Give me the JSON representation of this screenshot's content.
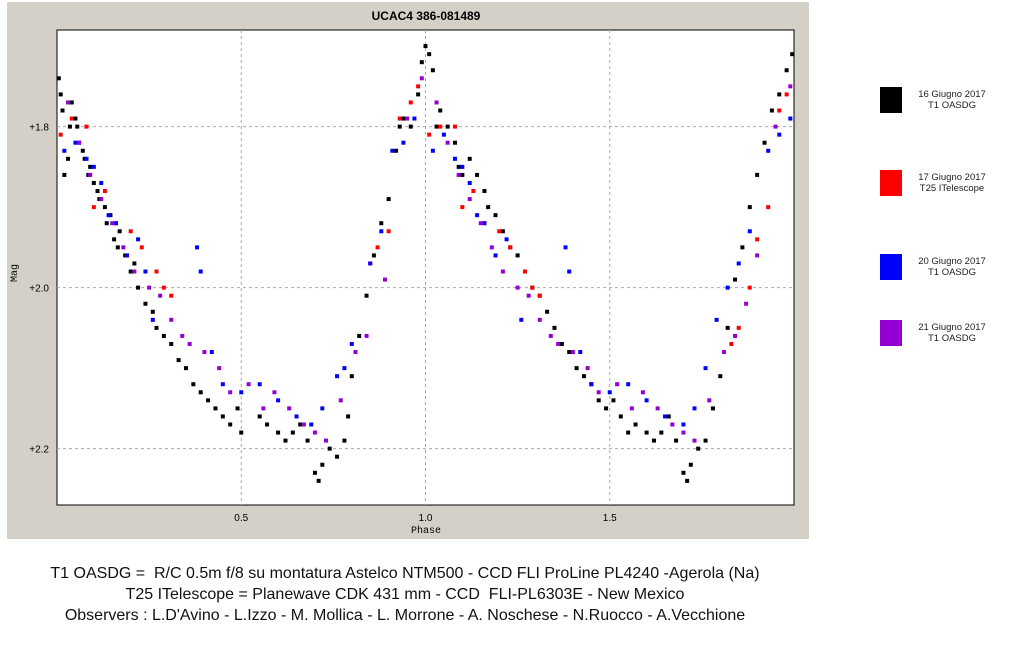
{
  "chart_data": {
    "type": "scatter",
    "title": "UCAC4 386-081489",
    "xlabel": "Phase",
    "ylabel": "Mag",
    "xlim": [
      0,
      2.0
    ],
    "ylim": [
      1.68,
      2.27
    ],
    "y_inverted": true,
    "x_ticks": [
      "0.5",
      "1.0",
      "1.5"
    ],
    "x_tick_values": [
      0.5,
      1.0,
      1.5
    ],
    "y_ticks": [
      "+1.8",
      "+2.0",
      "+2.2"
    ],
    "y_tick_values": [
      1.8,
      2.0,
      2.2
    ],
    "grid": true,
    "legend_position": "right",
    "series": [
      {
        "name": "16 Giugno 2017 T1 OASDG",
        "label_lines": [
          "16 Giugno 2017",
          "T1 OASDG"
        ],
        "color": "#000000",
        "phase_start": 0.0,
        "phase_end": 0.06,
        "phase_start2": 0.58,
        "phase_end2": 0.76,
        "points": [
          [
            0.005,
            1.74
          ],
          [
            0.01,
            1.76
          ],
          [
            0.015,
            1.78
          ],
          [
            0.02,
            1.86
          ],
          [
            0.03,
            1.84
          ],
          [
            0.035,
            1.8
          ],
          [
            0.04,
            1.77
          ],
          [
            0.05,
            1.79
          ],
          [
            0.055,
            1.8
          ],
          [
            0.06,
            1.82
          ],
          [
            0.07,
            1.83
          ],
          [
            0.075,
            1.84
          ],
          [
            0.085,
            1.86
          ],
          [
            0.09,
            1.85
          ],
          [
            0.1,
            1.87
          ],
          [
            0.11,
            1.88
          ],
          [
            0.115,
            1.89
          ],
          [
            0.13,
            1.9
          ],
          [
            0.135,
            1.92
          ],
          [
            0.145,
            1.91
          ],
          [
            0.155,
            1.94
          ],
          [
            0.165,
            1.95
          ],
          [
            0.17,
            1.93
          ],
          [
            0.185,
            1.96
          ],
          [
            0.2,
            1.98
          ],
          [
            0.21,
            1.97
          ],
          [
            0.22,
            2.0
          ],
          [
            0.24,
            2.02
          ],
          [
            0.26,
            2.03
          ],
          [
            0.27,
            2.05
          ],
          [
            0.29,
            2.06
          ],
          [
            0.31,
            2.07
          ],
          [
            0.33,
            2.09
          ],
          [
            0.35,
            2.1
          ],
          [
            0.37,
            2.12
          ],
          [
            0.39,
            2.13
          ],
          [
            0.41,
            2.14
          ],
          [
            0.43,
            2.15
          ],
          [
            0.45,
            2.16
          ],
          [
            0.47,
            2.17
          ],
          [
            0.49,
            2.15
          ],
          [
            0.5,
            2.18
          ],
          [
            0.55,
            2.16
          ],
          [
            0.57,
            2.17
          ],
          [
            0.6,
            2.18
          ],
          [
            0.62,
            2.19
          ],
          [
            0.64,
            2.18
          ],
          [
            0.66,
            2.17
          ],
          [
            0.68,
            2.19
          ],
          [
            0.7,
            2.23
          ],
          [
            0.71,
            2.24
          ],
          [
            0.72,
            2.22
          ],
          [
            0.74,
            2.2
          ],
          [
            0.76,
            2.21
          ],
          [
            0.78,
            2.19
          ],
          [
            0.79,
            2.16
          ],
          [
            0.8,
            2.11
          ],
          [
            0.82,
            2.06
          ],
          [
            0.84,
            2.01
          ],
          [
            0.86,
            1.96
          ],
          [
            0.88,
            1.92
          ],
          [
            0.9,
            1.89
          ],
          [
            0.92,
            1.83
          ],
          [
            0.93,
            1.8
          ],
          [
            0.94,
            1.79
          ],
          [
            0.96,
            1.8
          ],
          [
            0.98,
            1.76
          ],
          [
            0.99,
            1.72
          ],
          [
            1.0,
            1.7
          ],
          [
            1.01,
            1.71
          ],
          [
            1.02,
            1.73
          ],
          [
            1.03,
            1.8
          ],
          [
            1.04,
            1.78
          ],
          [
            1.06,
            1.8
          ],
          [
            1.08,
            1.82
          ],
          [
            1.09,
            1.85
          ],
          [
            1.1,
            1.86
          ],
          [
            1.12,
            1.84
          ],
          [
            1.14,
            1.86
          ],
          [
            1.16,
            1.88
          ],
          [
            1.17,
            1.9
          ],
          [
            1.19,
            1.91
          ],
          [
            1.21,
            1.93
          ],
          [
            1.23,
            1.95
          ],
          [
            1.25,
            1.96
          ],
          [
            1.27,
            1.98
          ],
          [
            1.29,
            2.0
          ],
          [
            1.31,
            2.01
          ],
          [
            1.33,
            2.03
          ],
          [
            1.35,
            2.05
          ],
          [
            1.37,
            2.07
          ],
          [
            1.39,
            2.08
          ],
          [
            1.41,
            2.1
          ],
          [
            1.43,
            2.11
          ],
          [
            1.45,
            2.12
          ],
          [
            1.47,
            2.14
          ],
          [
            1.49,
            2.15
          ],
          [
            1.51,
            2.14
          ],
          [
            1.53,
            2.16
          ],
          [
            1.55,
            2.18
          ],
          [
            1.57,
            2.17
          ],
          [
            1.6,
            2.18
          ],
          [
            1.62,
            2.19
          ],
          [
            1.64,
            2.18
          ],
          [
            1.66,
            2.16
          ],
          [
            1.68,
            2.19
          ],
          [
            1.7,
            2.23
          ],
          [
            1.71,
            2.24
          ],
          [
            1.72,
            2.22
          ],
          [
            1.74,
            2.2
          ],
          [
            1.76,
            2.19
          ],
          [
            1.78,
            2.15
          ],
          [
            1.8,
            2.11
          ],
          [
            1.82,
            2.05
          ],
          [
            1.84,
            1.99
          ],
          [
            1.86,
            1.95
          ],
          [
            1.88,
            1.9
          ],
          [
            1.9,
            1.86
          ],
          [
            1.92,
            1.82
          ],
          [
            1.94,
            1.78
          ],
          [
            1.96,
            1.76
          ],
          [
            1.98,
            1.73
          ],
          [
            1.995,
            1.71
          ]
        ]
      },
      {
        "name": "17 Giugno 2017 T25 ITelescope",
        "label_lines": [
          "17 Giugno 2017",
          "T25 ITelescope"
        ],
        "color": "#ff0000",
        "points": [
          [
            0.01,
            1.81
          ],
          [
            0.04,
            1.79
          ],
          [
            0.08,
            1.8
          ],
          [
            0.1,
            1.9
          ],
          [
            0.13,
            1.88
          ],
          [
            0.16,
            1.92
          ],
          [
            0.2,
            1.93
          ],
          [
            0.23,
            1.95
          ],
          [
            0.27,
            1.98
          ],
          [
            0.29,
            2.0
          ],
          [
            0.31,
            2.01
          ],
          [
            0.85,
            1.97
          ],
          [
            0.87,
            1.95
          ],
          [
            0.9,
            1.93
          ],
          [
            0.93,
            1.79
          ],
          [
            0.96,
            1.77
          ],
          [
            0.98,
            1.75
          ],
          [
            1.01,
            1.81
          ],
          [
            1.04,
            1.8
          ],
          [
            1.08,
            1.8
          ],
          [
            1.1,
            1.9
          ],
          [
            1.13,
            1.88
          ],
          [
            1.16,
            1.92
          ],
          [
            1.2,
            1.93
          ],
          [
            1.23,
            1.95
          ],
          [
            1.27,
            1.98
          ],
          [
            1.29,
            2.0
          ],
          [
            1.31,
            2.01
          ],
          [
            1.83,
            2.07
          ],
          [
            1.85,
            2.05
          ],
          [
            1.88,
            2.0
          ],
          [
            1.9,
            1.94
          ],
          [
            1.93,
            1.9
          ],
          [
            1.96,
            1.78
          ],
          [
            1.98,
            1.76
          ]
        ]
      },
      {
        "name": "20 Giugno 2017 T1 OASDG",
        "label_lines": [
          "20 Giugno 2017",
          "T1 OASDG"
        ],
        "color": "#0000ff",
        "points": [
          [
            0.02,
            1.83
          ],
          [
            0.05,
            1.82
          ],
          [
            0.08,
            1.84
          ],
          [
            0.1,
            1.85
          ],
          [
            0.12,
            1.87
          ],
          [
            0.14,
            1.91
          ],
          [
            0.16,
            1.92
          ],
          [
            0.19,
            1.96
          ],
          [
            0.22,
            1.94
          ],
          [
            0.24,
            1.98
          ],
          [
            0.26,
            2.04
          ],
          [
            0.38,
            1.95
          ],
          [
            0.39,
            1.98
          ],
          [
            0.42,
            2.08
          ],
          [
            0.45,
            2.12
          ],
          [
            0.5,
            2.13
          ],
          [
            0.55,
            2.12
          ],
          [
            0.6,
            2.14
          ],
          [
            0.65,
            2.16
          ],
          [
            0.69,
            2.17
          ],
          [
            0.72,
            2.15
          ],
          [
            0.76,
            2.11
          ],
          [
            0.78,
            2.1
          ],
          [
            0.8,
            2.07
          ],
          [
            0.85,
            1.97
          ],
          [
            0.88,
            1.93
          ],
          [
            0.91,
            1.83
          ],
          [
            0.94,
            1.82
          ],
          [
            0.97,
            1.79
          ],
          [
            1.02,
            1.83
          ],
          [
            1.05,
            1.81
          ],
          [
            1.08,
            1.84
          ],
          [
            1.1,
            1.85
          ],
          [
            1.12,
            1.87
          ],
          [
            1.14,
            1.91
          ],
          [
            1.16,
            1.92
          ],
          [
            1.19,
            1.96
          ],
          [
            1.22,
            1.94
          ],
          [
            1.26,
            2.04
          ],
          [
            1.38,
            1.95
          ],
          [
            1.39,
            1.98
          ],
          [
            1.42,
            2.08
          ],
          [
            1.45,
            2.12
          ],
          [
            1.5,
            2.13
          ],
          [
            1.55,
            2.12
          ],
          [
            1.6,
            2.14
          ],
          [
            1.65,
            2.16
          ],
          [
            1.7,
            2.17
          ],
          [
            1.73,
            2.15
          ],
          [
            1.76,
            2.1
          ],
          [
            1.79,
            2.04
          ],
          [
            1.82,
            2.0
          ],
          [
            1.85,
            1.97
          ],
          [
            1.88,
            1.93
          ],
          [
            1.93,
            1.83
          ],
          [
            1.96,
            1.81
          ],
          [
            1.99,
            1.79
          ]
        ]
      },
      {
        "name": "21 Giugno 2017 T1 OASDG",
        "label_lines": [
          "21 Giugno 2017",
          "T1 OASDG"
        ],
        "color": "#9400d3",
        "points": [
          [
            0.03,
            1.77
          ],
          [
            0.06,
            1.82
          ],
          [
            0.09,
            1.86
          ],
          [
            0.12,
            1.89
          ],
          [
            0.15,
            1.92
          ],
          [
            0.18,
            1.95
          ],
          [
            0.21,
            1.98
          ],
          [
            0.25,
            2.0
          ],
          [
            0.28,
            2.01
          ],
          [
            0.31,
            2.04
          ],
          [
            0.34,
            2.06
          ],
          [
            0.36,
            2.07
          ],
          [
            0.4,
            2.08
          ],
          [
            0.44,
            2.1
          ],
          [
            0.47,
            2.13
          ],
          [
            0.52,
            2.12
          ],
          [
            0.56,
            2.15
          ],
          [
            0.59,
            2.13
          ],
          [
            0.63,
            2.15
          ],
          [
            0.67,
            2.17
          ],
          [
            0.7,
            2.18
          ],
          [
            0.73,
            2.19
          ],
          [
            0.77,
            2.14
          ],
          [
            0.81,
            2.08
          ],
          [
            0.84,
            2.06
          ],
          [
            0.89,
            1.99
          ],
          [
            0.95,
            1.79
          ],
          [
            0.99,
            1.74
          ],
          [
            1.03,
            1.77
          ],
          [
            1.06,
            1.82
          ],
          [
            1.09,
            1.86
          ],
          [
            1.12,
            1.89
          ],
          [
            1.15,
            1.92
          ],
          [
            1.18,
            1.95
          ],
          [
            1.21,
            1.98
          ],
          [
            1.25,
            2.0
          ],
          [
            1.28,
            2.01
          ],
          [
            1.31,
            2.04
          ],
          [
            1.34,
            2.06
          ],
          [
            1.36,
            2.07
          ],
          [
            1.4,
            2.08
          ],
          [
            1.44,
            2.1
          ],
          [
            1.47,
            2.13
          ],
          [
            1.52,
            2.12
          ],
          [
            1.56,
            2.15
          ],
          [
            1.59,
            2.13
          ],
          [
            1.63,
            2.15
          ],
          [
            1.67,
            2.17
          ],
          [
            1.7,
            2.18
          ],
          [
            1.73,
            2.19
          ],
          [
            1.77,
            2.14
          ],
          [
            1.81,
            2.08
          ],
          [
            1.84,
            2.06
          ],
          [
            1.87,
            2.02
          ],
          [
            1.9,
            1.96
          ],
          [
            1.95,
            1.8
          ],
          [
            1.99,
            1.75
          ]
        ]
      }
    ]
  },
  "footer": {
    "line1": "T1 OASDG =  R/C 0.5m f/8 su montatura Astelco NTM500 - CCD FLI ProLine PL4240 -Agerola (Na)",
    "line2": "T25 ITelescope = Planewave CDK 431 mm - CCD  FLI-PL6303E - New Mexico",
    "line3": "Observers : L.D'Avino - L.Izzo - M. Mollica - L. Morrone - A. Noschese - N.Ruocco - A.Vecchione"
  }
}
